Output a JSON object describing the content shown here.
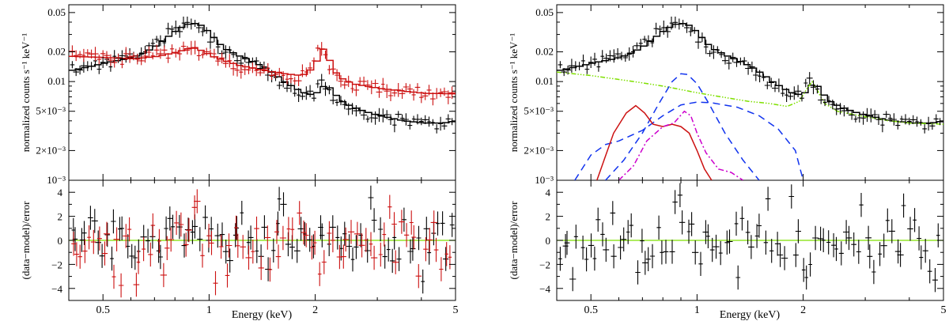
{
  "figure": {
    "panels": [
      {
        "id": "left",
        "ylabel_top": "normalized counts s⁻¹ keV⁻¹",
        "ylabel_bottom": "(data−model)/error",
        "xlabel": "Energy (keV)"
      },
      {
        "id": "right",
        "ylabel_top": "normalized counts s⁻¹ keV⁻¹",
        "ylabel_bottom": "(data−model)/error",
        "xlabel": "Energy (keV)"
      }
    ]
  },
  "chart_data": [
    {
      "type": "line",
      "panel": "left",
      "xscale": "log",
      "yscale": "log",
      "xlim": [
        0.4,
        5.0
      ],
      "ylim": [
        0.001,
        0.06
      ],
      "xticks": [
        {
          "v": 0.5,
          "label": "0.5"
        },
        {
          "v": 1,
          "label": "1"
        },
        {
          "v": 2,
          "label": "2"
        },
        {
          "v": 5,
          "label": "5"
        }
      ],
      "yticks": [
        {
          "v": 0.05,
          "label": "0.05"
        },
        {
          "v": 0.02,
          "label": "0.02"
        },
        {
          "v": 0.01,
          "label": "0.01"
        },
        {
          "v": 0.005,
          "label": "5×10⁻³"
        },
        {
          "v": 0.002,
          "label": "2×10⁻³"
        },
        {
          "v": 0.001,
          "label": "10⁻³"
        }
      ],
      "series": [
        {
          "name": "model-black",
          "color": "#000000",
          "style": "step",
          "x": [
            0.4,
            0.45,
            0.5,
            0.55,
            0.6,
            0.65,
            0.7,
            0.75,
            0.8,
            0.85,
            0.88,
            0.92,
            0.96,
            1.0,
            1.05,
            1.1,
            1.2,
            1.3,
            1.4,
            1.5,
            1.6,
            1.7,
            1.8,
            1.9,
            2.0,
            2.1,
            2.2,
            2.3,
            2.5,
            2.8,
            3.0,
            3.5,
            4.0,
            4.5,
            5.0
          ],
          "y": [
            0.013,
            0.0142,
            0.0155,
            0.0165,
            0.0178,
            0.02,
            0.0235,
            0.0285,
            0.034,
            0.038,
            0.039,
            0.038,
            0.034,
            0.029,
            0.024,
            0.021,
            0.018,
            0.016,
            0.014,
            0.012,
            0.01,
            0.0088,
            0.0078,
            0.0074,
            0.0078,
            0.0095,
            0.008,
            0.0065,
            0.0055,
            0.0048,
            0.0045,
            0.004,
            0.0038,
            0.0038,
            0.004
          ]
        },
        {
          "name": "model-red",
          "color": "#cc1111",
          "style": "step",
          "x": [
            0.4,
            0.5,
            0.6,
            0.7,
            0.8,
            0.85,
            0.9,
            0.95,
            1.0,
            1.1,
            1.2,
            1.4,
            1.6,
            1.8,
            1.95,
            2.05,
            2.12,
            2.2,
            2.3,
            2.5,
            3.0,
            3.5,
            4.0,
            5.0
          ],
          "y": [
            0.018,
            0.0175,
            0.017,
            0.018,
            0.02,
            0.0215,
            0.0218,
            0.02,
            0.018,
            0.016,
            0.0145,
            0.013,
            0.012,
            0.0115,
            0.014,
            0.022,
            0.019,
            0.0135,
            0.011,
            0.0095,
            0.0085,
            0.008,
            0.0076,
            0.0075
          ]
        }
      ],
      "data_points": [
        {
          "name": "data-black",
          "color": "#000000",
          "scatter_seed": 11
        },
        {
          "name": "data-red",
          "color": "#cc1111",
          "scatter_seed": 23
        }
      ]
    },
    {
      "type": "line",
      "panel": "left-residuals",
      "xscale": "log",
      "xlim": [
        0.4,
        5.0
      ],
      "ylim": [
        -5,
        5
      ],
      "yticks": [
        {
          "v": 4,
          "label": "4"
        },
        {
          "v": 2,
          "label": "2"
        },
        {
          "v": 0,
          "label": "0"
        },
        {
          "v": -2,
          "label": "−2"
        },
        {
          "v": -4,
          "label": "−4"
        }
      ],
      "zero_line_color": "#7fe000",
      "series": [
        {
          "name": "resid-black",
          "color": "#000000",
          "seed": 5,
          "n": 90
        },
        {
          "name": "resid-red",
          "color": "#cc1111",
          "seed": 17,
          "n": 85
        }
      ]
    },
    {
      "type": "line",
      "panel": "right",
      "xscale": "log",
      "yscale": "log",
      "xlim": [
        0.4,
        5.0
      ],
      "ylim": [
        0.001,
        0.06
      ],
      "xticks": [
        {
          "v": 0.5,
          "label": "0.5"
        },
        {
          "v": 1,
          "label": "1"
        },
        {
          "v": 2,
          "label": "2"
        },
        {
          "v": 5,
          "label": "5"
        }
      ],
      "yticks": [
        {
          "v": 0.05,
          "label": "0.05"
        },
        {
          "v": 0.02,
          "label": "0.02"
        },
        {
          "v": 0.01,
          "label": "0.01"
        },
        {
          "v": 0.005,
          "label": "5×10⁻³"
        },
        {
          "v": 0.002,
          "label": "2×10⁻³"
        },
        {
          "v": 0.001,
          "label": "10⁻³"
        }
      ],
      "series": [
        {
          "name": "total-model",
          "color": "#000000",
          "style": "step",
          "x": [
            0.4,
            0.45,
            0.5,
            0.55,
            0.6,
            0.65,
            0.7,
            0.75,
            0.8,
            0.85,
            0.88,
            0.92,
            0.96,
            1.0,
            1.05,
            1.1,
            1.2,
            1.3,
            1.4,
            1.5,
            1.6,
            1.7,
            1.8,
            1.9,
            2.0,
            2.1,
            2.18,
            2.3,
            2.5,
            2.8,
            3.0,
            3.5,
            4.0,
            4.5,
            5.0
          ],
          "y": [
            0.013,
            0.0142,
            0.0155,
            0.0165,
            0.0178,
            0.02,
            0.0235,
            0.0285,
            0.034,
            0.038,
            0.039,
            0.038,
            0.034,
            0.029,
            0.024,
            0.021,
            0.018,
            0.016,
            0.014,
            0.012,
            0.01,
            0.0088,
            0.0078,
            0.0074,
            0.0078,
            0.01,
            0.0085,
            0.0065,
            0.0055,
            0.0048,
            0.0045,
            0.004,
            0.0038,
            0.0038,
            0.004
          ]
        },
        {
          "name": "component-green",
          "color": "#7fe000",
          "style": "dashdot3",
          "x": [
            0.4,
            0.5,
            0.6,
            0.7,
            0.8,
            0.9,
            1.0,
            1.2,
            1.4,
            1.6,
            1.8,
            1.95,
            2.05,
            2.12,
            2.2,
            2.3,
            2.5,
            3.0,
            3.5,
            4.0,
            5.0
          ],
          "y": [
            0.0125,
            0.0115,
            0.0105,
            0.0097,
            0.009,
            0.0083,
            0.0077,
            0.0069,
            0.0063,
            0.006,
            0.0056,
            0.0063,
            0.0085,
            0.01,
            0.008,
            0.006,
            0.005,
            0.0044,
            0.004,
            0.0038,
            0.0037
          ]
        },
        {
          "name": "component-blue-1",
          "color": "#1133ee",
          "style": "dashed",
          "x": [
            0.45,
            0.5,
            0.55,
            0.6,
            0.7,
            0.8,
            0.9,
            1.0,
            1.1,
            1.3,
            1.5,
            1.7,
            1.9,
            2.0
          ],
          "y": [
            0.001,
            0.0018,
            0.0023,
            0.0025,
            0.0032,
            0.0045,
            0.0058,
            0.0062,
            0.0061,
            0.0055,
            0.0045,
            0.0033,
            0.002,
            0.001
          ]
        },
        {
          "name": "component-blue-2",
          "color": "#1133ee",
          "style": "dashed",
          "x": [
            0.55,
            0.62,
            0.7,
            0.78,
            0.85,
            0.9,
            0.94,
            1.0,
            1.08,
            1.2,
            1.35,
            1.5
          ],
          "y": [
            0.001,
            0.0016,
            0.003,
            0.006,
            0.01,
            0.012,
            0.0118,
            0.0095,
            0.006,
            0.003,
            0.0016,
            0.001
          ]
        },
        {
          "name": "component-red",
          "color": "#cc1111",
          "style": "solid",
          "x": [
            0.52,
            0.58,
            0.63,
            0.67,
            0.71,
            0.75,
            0.8,
            0.85,
            0.9,
            0.95,
            1.0,
            1.05,
            1.1
          ],
          "y": [
            0.001,
            0.003,
            0.0048,
            0.0057,
            0.0048,
            0.0037,
            0.0035,
            0.0037,
            0.0035,
            0.003,
            0.002,
            0.0013,
            0.001
          ]
        },
        {
          "name": "component-magenta",
          "color": "#cc00cc",
          "style": "dashdot",
          "x": [
            0.6,
            0.66,
            0.72,
            0.8,
            0.86,
            0.92,
            0.96,
            1.0,
            1.06,
            1.15,
            1.25,
            1.35
          ],
          "y": [
            0.001,
            0.0014,
            0.0025,
            0.0035,
            0.0038,
            0.005,
            0.0045,
            0.003,
            0.0019,
            0.0013,
            0.0012,
            0.001
          ]
        }
      ],
      "data_points": [
        {
          "name": "data-black",
          "color": "#000000",
          "scatter_seed": 11
        }
      ]
    },
    {
      "type": "line",
      "panel": "right-residuals",
      "xscale": "log",
      "xlim": [
        0.4,
        5.0
      ],
      "ylim": [
        -5,
        5
      ],
      "yticks": [
        {
          "v": 4,
          "label": "4"
        },
        {
          "v": 2,
          "label": "2"
        },
        {
          "v": 0,
          "label": "0"
        },
        {
          "v": -2,
          "label": "−2"
        },
        {
          "v": -4,
          "label": "−4"
        }
      ],
      "zero_line_color": "#7fe000",
      "series": [
        {
          "name": "resid-black",
          "color": "#000000",
          "seed": 7,
          "n": 90
        }
      ]
    }
  ]
}
